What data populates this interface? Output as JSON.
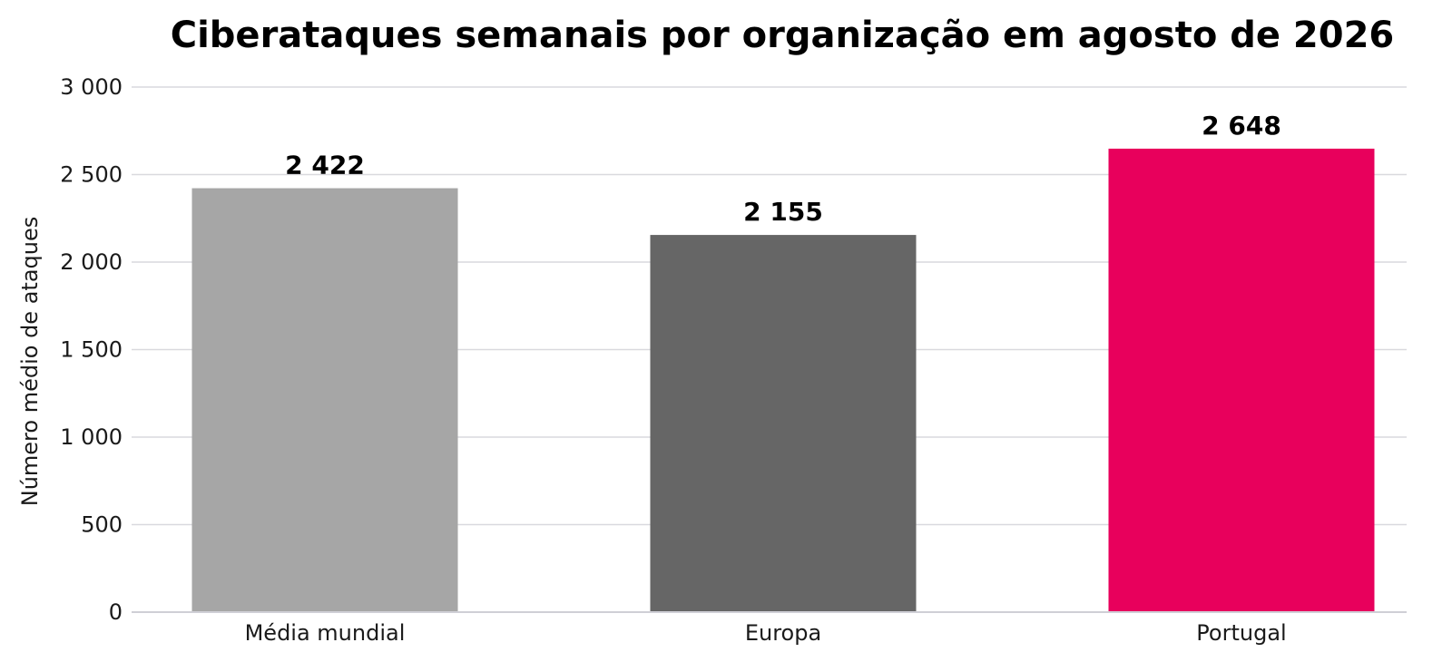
{
  "chart_data": {
    "type": "bar",
    "title": "Ciberataques semanais por organização em agosto de 2026",
    "ylabel": "Número médio de ataques",
    "xlabel": "",
    "categories": [
      "Média mundial",
      "Europa",
      "Portugal"
    ],
    "values": [
      2422,
      2155,
      2648
    ],
    "value_labels": [
      "2 422",
      "2 155",
      "2 648"
    ],
    "bar_colors": [
      "#a6a6a6",
      "#666666",
      "#e8005c"
    ],
    "ylim": [
      0,
      3000
    ],
    "yticks": [
      0,
      500,
      1000,
      1500,
      2000,
      2500,
      3000
    ],
    "ytick_labels": [
      "0",
      "500",
      "1 000",
      "1 500",
      "2 000",
      "2 500",
      "3 000"
    ],
    "grid": "horizontal",
    "grid_color": "#d9d9de",
    "legend": "none"
  }
}
